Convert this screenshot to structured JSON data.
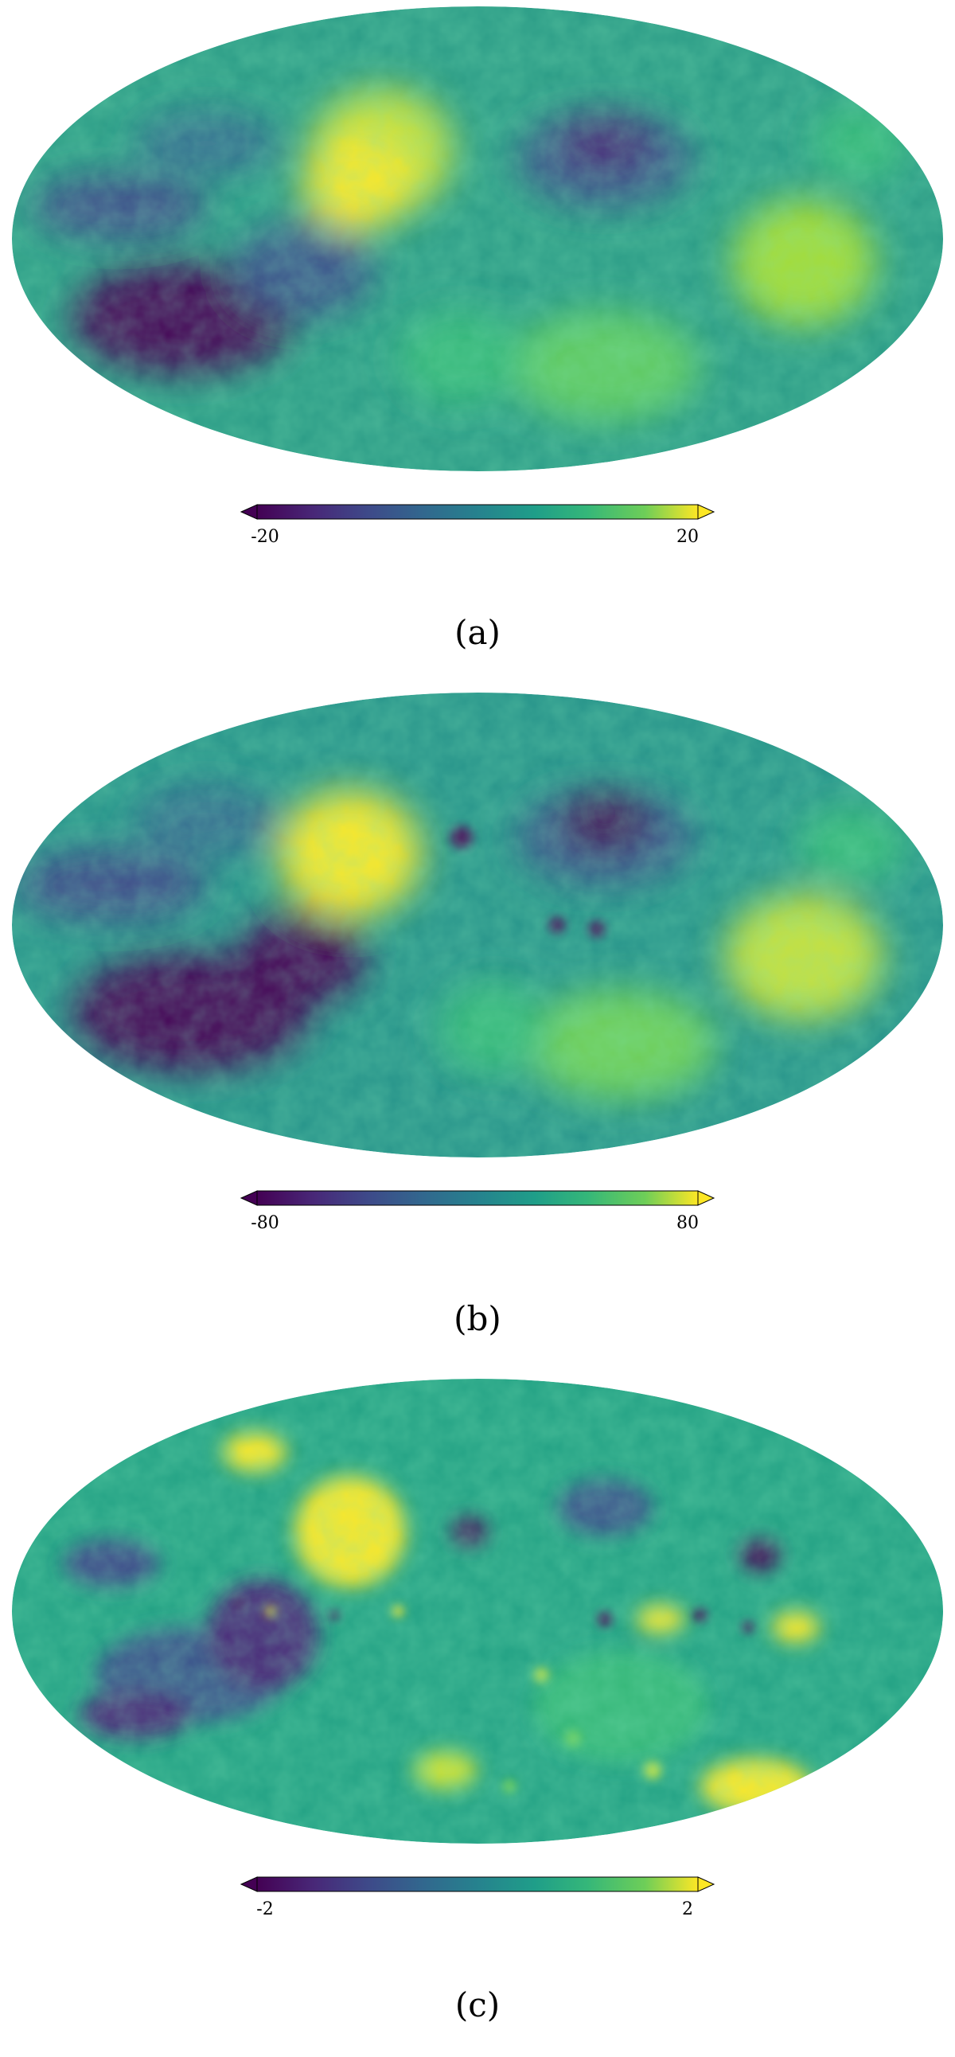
{
  "panels": [
    {
      "id": "a",
      "caption": "(a)",
      "colorbar": {
        "min_label": "-20",
        "max_label": "20",
        "min": -20,
        "max": 20,
        "colormap": "viridis"
      }
    },
    {
      "id": "b",
      "caption": "(b)",
      "colorbar": {
        "min_label": "-80",
        "max_label": "80",
        "min": -80,
        "max": 80,
        "colormap": "viridis"
      }
    },
    {
      "id": "c",
      "caption": "(c)",
      "colorbar": {
        "min_label": "-2",
        "max_label": "2",
        "min": -2,
        "max": 2,
        "colormap": "viridis"
      }
    }
  ],
  "colors": {
    "viridis_dark": "#440154",
    "viridis_blue": "#3b528b",
    "viridis_teal": "#21918c",
    "viridis_green": "#5ec962",
    "viridis_yellow": "#fde725"
  }
}
